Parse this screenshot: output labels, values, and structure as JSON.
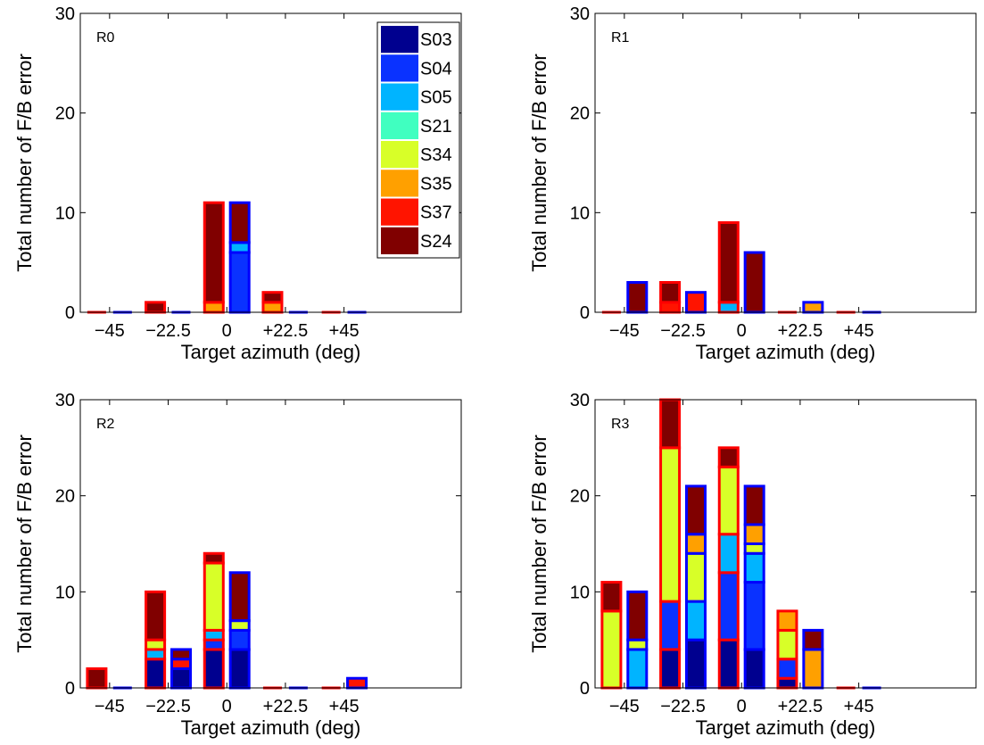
{
  "chart_data": [
    {
      "type": "bar",
      "stacked": true,
      "panel_label": "R0",
      "xlabel": "Target azimuth (deg)",
      "ylabel": "Total number of F/B error",
      "ylim": [
        0,
        30
      ],
      "yticks": [
        "0",
        "10",
        "20",
        "30"
      ],
      "categories": [
        "−45",
        "−22.5",
        "0",
        "+22.5",
        "+45"
      ],
      "groups": [
        {
          "edge_color": "#ff0000",
          "stacks": [
            [],
            [
              {
                "subject": "S24",
                "value": 1
              }
            ],
            [
              {
                "subject": "S35",
                "value": 1
              },
              {
                "subject": "S24",
                "value": 10
              }
            ],
            [
              {
                "subject": "S35",
                "value": 1
              },
              {
                "subject": "S24",
                "value": 1
              }
            ],
            []
          ]
        },
        {
          "edge_color": "#0000ff",
          "stacks": [
            [],
            [],
            [
              {
                "subject": "S04",
                "value": 6
              },
              {
                "subject": "S05",
                "value": 1
              },
              {
                "subject": "S24",
                "value": 4
              }
            ],
            [],
            []
          ]
        }
      ]
    },
    {
      "type": "bar",
      "stacked": true,
      "panel_label": "R1",
      "xlabel": "Target azimuth (deg)",
      "ylabel": "Total number of F/B error",
      "ylim": [
        0,
        30
      ],
      "yticks": [
        "0",
        "10",
        "20",
        "30"
      ],
      "categories": [
        "−45",
        "−22.5",
        "0",
        "+22.5",
        "+45"
      ],
      "groups": [
        {
          "edge_color": "#ff0000",
          "stacks": [
            [],
            [
              {
                "subject": "S37",
                "value": 1
              },
              {
                "subject": "S24",
                "value": 2
              }
            ],
            [
              {
                "subject": "S05",
                "value": 1
              },
              {
                "subject": "S24",
                "value": 8
              }
            ],
            [],
            []
          ]
        },
        {
          "edge_color": "#0000ff",
          "stacks": [
            [
              {
                "subject": "S24",
                "value": 3
              }
            ],
            [
              {
                "subject": "S37",
                "value": 2
              }
            ],
            [
              {
                "subject": "S24",
                "value": 6
              }
            ],
            [
              {
                "subject": "S35",
                "value": 1
              }
            ],
            []
          ]
        }
      ]
    },
    {
      "type": "bar",
      "stacked": true,
      "panel_label": "R2",
      "xlabel": "Target azimuth (deg)",
      "ylabel": "Total number of F/B error",
      "ylim": [
        0,
        30
      ],
      "yticks": [
        "0",
        "10",
        "20",
        "30"
      ],
      "categories": [
        "−45",
        "−22.5",
        "0",
        "+22.5",
        "+45"
      ],
      "groups": [
        {
          "edge_color": "#ff0000",
          "stacks": [
            [
              {
                "subject": "S24",
                "value": 2
              }
            ],
            [
              {
                "subject": "S03",
                "value": 3
              },
              {
                "subject": "S05",
                "value": 1
              },
              {
                "subject": "S34",
                "value": 1
              },
              {
                "subject": "S24",
                "value": 5
              }
            ],
            [
              {
                "subject": "S03",
                "value": 4
              },
              {
                "subject": "S04",
                "value": 1
              },
              {
                "subject": "S05",
                "value": 1
              },
              {
                "subject": "S34",
                "value": 7
              },
              {
                "subject": "S24",
                "value": 1
              }
            ],
            [],
            []
          ]
        },
        {
          "edge_color": "#0000ff",
          "stacks": [
            [],
            [
              {
                "subject": "S03",
                "value": 2
              },
              {
                "subject": "S37",
                "value": 1
              },
              {
                "subject": "S24",
                "value": 1
              }
            ],
            [
              {
                "subject": "S03",
                "value": 4
              },
              {
                "subject": "S04",
                "value": 2
              },
              {
                "subject": "S34",
                "value": 1
              },
              {
                "subject": "S24",
                "value": 5
              }
            ],
            [],
            [
              {
                "subject": "S37",
                "value": 1
              }
            ]
          ]
        }
      ]
    },
    {
      "type": "bar",
      "stacked": true,
      "panel_label": "R3",
      "xlabel": "Target azimuth (deg)",
      "ylabel": "Total number of F/B error",
      "ylim": [
        0,
        30
      ],
      "yticks": [
        "0",
        "10",
        "20",
        "30"
      ],
      "categories": [
        "−45",
        "−22.5",
        "0",
        "+22.5",
        "+45"
      ],
      "groups": [
        {
          "edge_color": "#ff0000",
          "stacks": [
            [
              {
                "subject": "S34",
                "value": 8
              },
              {
                "subject": "S24",
                "value": 3
              }
            ],
            [
              {
                "subject": "S03",
                "value": 4
              },
              {
                "subject": "S04",
                "value": 5
              },
              {
                "subject": "S34",
                "value": 16
              },
              {
                "subject": "S24",
                "value": 5
              }
            ],
            [
              {
                "subject": "S03",
                "value": 5
              },
              {
                "subject": "S04",
                "value": 7
              },
              {
                "subject": "S05",
                "value": 4
              },
              {
                "subject": "S34",
                "value": 7
              },
              {
                "subject": "S24",
                "value": 2
              }
            ],
            [
              {
                "subject": "S03",
                "value": 1
              },
              {
                "subject": "S04",
                "value": 2
              },
              {
                "subject": "S34",
                "value": 3
              },
              {
                "subject": "S35",
                "value": 2
              }
            ],
            []
          ]
        },
        {
          "edge_color": "#0000ff",
          "stacks": [
            [
              {
                "subject": "S05",
                "value": 4
              },
              {
                "subject": "S34",
                "value": 1
              },
              {
                "subject": "S24",
                "value": 5
              }
            ],
            [
              {
                "subject": "S03",
                "value": 5
              },
              {
                "subject": "S05",
                "value": 4
              },
              {
                "subject": "S34",
                "value": 5
              },
              {
                "subject": "S35",
                "value": 2
              },
              {
                "subject": "S24",
                "value": 5
              }
            ],
            [
              {
                "subject": "S03",
                "value": 4
              },
              {
                "subject": "S04",
                "value": 7
              },
              {
                "subject": "S05",
                "value": 3
              },
              {
                "subject": "S34",
                "value": 1
              },
              {
                "subject": "S35",
                "value": 2
              },
              {
                "subject": "S24",
                "value": 4
              }
            ],
            [
              {
                "subject": "S35",
                "value": 4
              },
              {
                "subject": "S24",
                "value": 2
              }
            ],
            []
          ]
        }
      ]
    }
  ],
  "legend": {
    "placement": "top-right of first panel",
    "entries": [
      {
        "label": "S03",
        "color": "#00008f"
      },
      {
        "label": "S04",
        "color": "#0a32ff"
      },
      {
        "label": "S05",
        "color": "#00b4ff"
      },
      {
        "label": "S21",
        "color": "#40ffc0"
      },
      {
        "label": "S34",
        "color": "#d8ff28"
      },
      {
        "label": "S35",
        "color": "#ffa000"
      },
      {
        "label": "S37",
        "color": "#ff1400"
      },
      {
        "label": "S24",
        "color": "#800000"
      }
    ]
  }
}
